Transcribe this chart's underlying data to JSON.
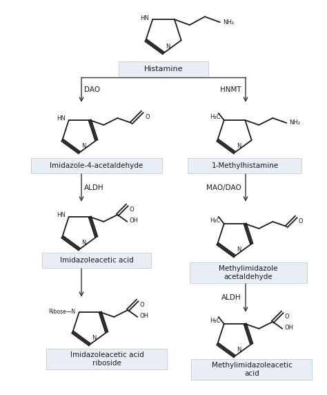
{
  "bg_color": "#ffffff",
  "box_color": "#e8eef3",
  "box_edge_color": "#c0cdd8",
  "text_color": "#1a1a1a",
  "line_color": "#333333",
  "sc_color": "#1a1a1a",
  "figsize": [
    4.74,
    5.72
  ],
  "dpi": 100,
  "compounds": {
    "histamine": "Histamine",
    "imidazole_acetaldehyde": "Imidazole-4-acetaldehyde",
    "methylhistamine": "1-Methylhistamine",
    "imidazoleacetic_acid": "Imidazoleacetic acid",
    "methylimidazole_acetaldehyde": "Methylimidazole\nacetaldehyde",
    "imidazoleacetic_riboside": "Imidazoleacetic acid\nriboside",
    "methylimidazoleacetic_acid": "Methylimidazoleacetic\nacid"
  },
  "enzymes": {
    "DAO": "DAO",
    "HNMT": "HNMT",
    "ALDH_left": "ALDH",
    "MAO_DAO": "MAO/DAO",
    "ALDH_right": "ALDH"
  }
}
